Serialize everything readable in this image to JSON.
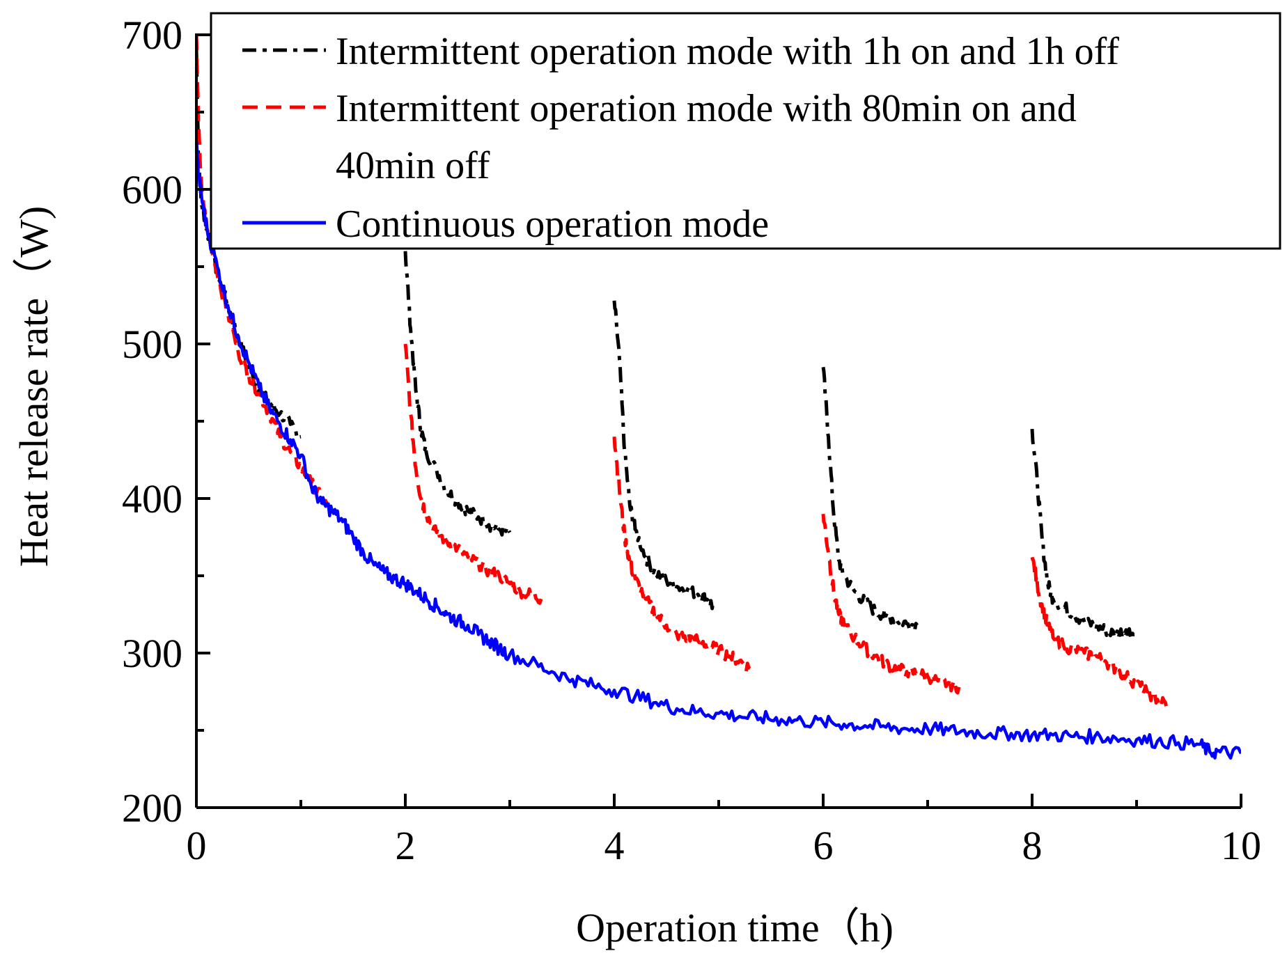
{
  "chart_data": {
    "type": "line",
    "title": "",
    "xlabel": "Operation time（h)",
    "ylabel": "Heat release rate（W)",
    "xlim": [
      0,
      10
    ],
    "ylim": [
      200,
      700
    ],
    "xticks": [
      "0",
      "2",
      "4",
      "6",
      "8",
      "10"
    ],
    "yticks": [
      "200",
      "300",
      "400",
      "500",
      "600",
      "700"
    ],
    "grid": false,
    "legend_position": "top-right",
    "legend": {
      "line1": "Intermittent operation mode with 1h on and 1h off",
      "line2a": "Intermittent operation mode with 80min on and",
      "line2b": "40min off",
      "line3": "Continuous operation mode"
    },
    "series": [
      {
        "name": "Intermittent operation mode with 1h on and 1h off",
        "color": "#000000",
        "style": "dash-dot",
        "segments": [
          {
            "x": [
              0,
              0.02,
              0.05,
              0.1,
              0.2,
              0.3,
              0.4,
              0.5,
              0.6,
              0.7,
              0.8,
              0.9,
              1.0
            ],
            "y": [
              690,
              620,
              590,
              575,
              545,
              525,
              505,
              485,
              470,
              462,
              455,
              448,
              440
            ]
          },
          {
            "x": [
              2.0,
              2.05,
              2.1,
              2.15,
              2.2,
              2.3,
              2.4,
              2.5,
              2.6,
              2.7,
              2.8,
              2.9,
              3.0
            ],
            "y": [
              560,
              510,
              470,
              445,
              430,
              418,
              405,
              398,
              392,
              388,
              383,
              380,
              378
            ]
          },
          {
            "x": [
              4.0,
              4.05,
              4.1,
              4.15,
              4.2,
              4.3,
              4.4,
              4.5,
              4.6,
              4.7,
              4.8,
              4.9,
              4.95
            ],
            "y": [
              528,
              490,
              430,
              395,
              380,
              362,
              352,
              347,
              343,
              341,
              338,
              334,
              330
            ]
          },
          {
            "x": [
              6.0,
              6.05,
              6.1,
              6.15,
              6.2,
              6.3,
              6.4,
              6.5,
              6.6,
              6.7,
              6.8,
              6.9
            ],
            "y": [
              485,
              440,
              390,
              360,
              350,
              340,
              333,
              327,
              324,
              322,
              319,
              318
            ]
          },
          {
            "x": [
              8.0,
              8.05,
              8.1,
              8.15,
              8.2,
              8.3,
              8.4,
              8.5,
              8.6,
              8.7,
              8.8,
              8.9,
              8.98
            ],
            "y": [
              445,
              410,
              370,
              345,
              335,
              330,
              325,
              320,
              318,
              315,
              312,
              315,
              312
            ]
          }
        ]
      },
      {
        "name": "Intermittent operation mode with 80min on and 40min off",
        "color": "#ff0000",
        "style": "dashed",
        "segments": [
          {
            "x": [
              0,
              0.02,
              0.05,
              0.1,
              0.2,
              0.3,
              0.4,
              0.5,
              0.6,
              0.7,
              0.8,
              0.9,
              1.0,
              1.1,
              1.2,
              1.3
            ],
            "y": [
              700,
              640,
              600,
              575,
              545,
              520,
              495,
              480,
              468,
              455,
              440,
              430,
              420,
              410,
              400,
              392
            ]
          },
          {
            "x": [
              2.0,
              2.05,
              2.1,
              2.15,
              2.2,
              2.3,
              2.4,
              2.5,
              2.6,
              2.7,
              2.8,
              2.9,
              3.0,
              3.1,
              3.2,
              3.3
            ],
            "y": [
              500,
              455,
              420,
              400,
              390,
              378,
              372,
              368,
              362,
              358,
              353,
              350,
              345,
              340,
              338,
              335
            ]
          },
          {
            "x": [
              4.0,
              4.05,
              4.1,
              4.15,
              4.2,
              4.3,
              4.4,
              4.5,
              4.6,
              4.7,
              4.8,
              4.9,
              5.0,
              5.1,
              5.2,
              5.3
            ],
            "y": [
              440,
              405,
              375,
              358,
              348,
              335,
              325,
              318,
              312,
              310,
              308,
              305,
              302,
              298,
              295,
              290
            ]
          },
          {
            "x": [
              6.0,
              6.05,
              6.1,
              6.15,
              6.2,
              6.3,
              6.4,
              6.5,
              6.6,
              6.7,
              6.8,
              6.9,
              7.0,
              7.1,
              7.2,
              7.3
            ],
            "y": [
              390,
              365,
              340,
              325,
              318,
              310,
              303,
              298,
              293,
              290,
              288,
              287,
              285,
              282,
              280,
              278
            ]
          },
          {
            "x": [
              8.0,
              8.05,
              8.1,
              8.15,
              8.2,
              8.3,
              8.4,
              8.5,
              8.6,
              8.7,
              8.8,
              8.9,
              9.0,
              9.1,
              9.2,
              9.3
            ],
            "y": [
              362,
              345,
              328,
              318,
              310,
              305,
              302,
              300,
              298,
              295,
              290,
              285,
              280,
              275,
              270,
              266
            ]
          }
        ]
      },
      {
        "name": "Continuous operation mode",
        "color": "#0000ff",
        "style": "solid",
        "segments": [
          {
            "x": [
              0,
              0.02,
              0.05,
              0.1,
              0.2,
              0.3,
              0.4,
              0.5,
              0.6,
              0.7,
              0.8,
              0.9,
              1.0,
              1.1,
              1.2,
              1.3,
              1.4,
              1.5,
              1.6,
              1.7,
              1.8,
              1.9,
              2.0,
              2.1,
              2.2,
              2.3,
              2.4,
              2.5,
              2.6,
              2.7,
              2.8,
              2.9,
              3.0,
              3.2,
              3.4,
              3.6,
              3.8,
              4.0,
              4.2,
              4.4,
              4.6,
              4.8,
              5.0,
              5.2,
              5.4,
              5.6,
              5.8,
              6.0,
              6.2,
              6.4,
              6.6,
              6.8,
              7.0,
              7.2,
              7.4,
              7.6,
              7.8,
              8.0,
              8.2,
              8.4,
              8.6,
              8.8,
              9.0,
              9.2,
              9.4,
              9.6,
              9.7,
              9.8,
              10.0
            ],
            "y": [
              630,
              610,
              595,
              575,
              550,
              525,
              505,
              488,
              472,
              458,
              448,
              438,
              428,
              408,
              397,
              392,
              385,
              375,
              365,
              357,
              352,
              348,
              345,
              340,
              335,
              330,
              325,
              321,
              318,
              312,
              308,
              303,
              299,
              294,
              288,
              283,
              279,
              276,
              272,
              268,
              264,
              262,
              261,
              259,
              258,
              257,
              256,
              255,
              254,
              253,
              252,
              251,
              251,
              250,
              249,
              248,
              248,
              247,
              247,
              246,
              246,
              245,
              244,
              243,
              242,
              241,
              236,
              236,
              235
            ]
          }
        ]
      }
    ]
  }
}
